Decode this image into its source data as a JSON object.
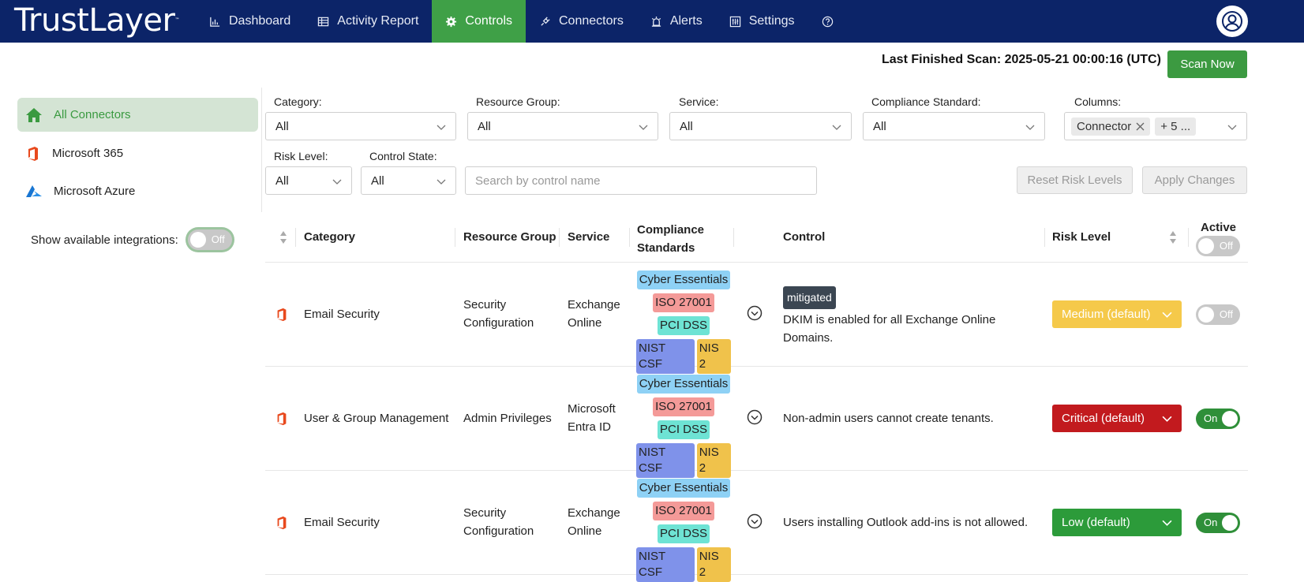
{
  "brand": "TrustLayer",
  "nav": [
    {
      "label": "Dashboard",
      "icon": "chart-icon"
    },
    {
      "label": "Activity Report",
      "icon": "table-icon"
    },
    {
      "label": "Controls",
      "icon": "gear-icon",
      "active": true
    },
    {
      "label": "Connectors",
      "icon": "plug-icon"
    },
    {
      "label": "Alerts",
      "icon": "alarm-icon"
    },
    {
      "label": "Settings",
      "icon": "sliders-icon"
    }
  ],
  "scan": {
    "label": "Last Finished Scan: 2025-05-21 00:00:16 (UTC)",
    "button": "Scan Now"
  },
  "sidebar": {
    "items": [
      {
        "label": "All Connectors",
        "icon": "home-icon"
      },
      {
        "label": "Microsoft 365",
        "icon": "office-icon"
      },
      {
        "label": "Microsoft Azure",
        "icon": "azure-icon"
      }
    ],
    "integrations_label": "Show available integrations:",
    "integrations_toggle": "Off"
  },
  "filters": {
    "category": {
      "label": "Category:",
      "value": "All"
    },
    "resource_group": {
      "label": "Resource Group:",
      "value": "All"
    },
    "service": {
      "label": "Service:",
      "value": "All"
    },
    "compliance": {
      "label": "Compliance Standard:",
      "value": "All"
    },
    "columns": {
      "label": "Columns:",
      "chip": "Connector",
      "more": "+ 5 ..."
    },
    "risk_level": {
      "label": "Risk Level:",
      "value": "All"
    },
    "control_state": {
      "label": "Control State:",
      "value": "All"
    },
    "search_placeholder": "Search by control name",
    "reset_button": "Reset Risk Levels",
    "apply_button": "Apply Changes"
  },
  "table": {
    "headers": {
      "category": "Category",
      "resource_group": "Resource Group",
      "service": "Service",
      "compliance_1": "Compliance",
      "compliance_2": "Standards",
      "control": "Control",
      "risk": "Risk Level",
      "active": "Active",
      "active_toggle": "Off"
    },
    "rows": [
      {
        "category": "Email Security",
        "resource_group_1": "Security",
        "resource_group_2": "Configuration",
        "service_1": "Exchange",
        "service_2": "Online",
        "tags": [
          "Cyber Essentials",
          "ISO 27001",
          "PCI DSS",
          "NIST CSF",
          "NIS 2"
        ],
        "badge": "mitigated",
        "control_1": "DKIM is enabled for all Exchange Online",
        "control_2": "Domains.",
        "risk": "Medium (default)",
        "active": "Off"
      },
      {
        "category": "User & Group Management",
        "resource_group_1": "Admin Privileges",
        "service_1": "Microsoft",
        "service_2": "Entra ID",
        "tags": [
          "Cyber Essentials",
          "ISO 27001",
          "PCI DSS",
          "NIST CSF",
          "NIS 2"
        ],
        "control_1": "Non-admin users cannot create tenants.",
        "risk": "Critical (default)",
        "active": "On"
      },
      {
        "category": "Email Security",
        "resource_group_1": "Security",
        "resource_group_2": "Configuration",
        "service_1": "Exchange",
        "service_2": "Online",
        "tags": [
          "Cyber Essentials",
          "ISO 27001",
          "PCI DSS",
          "NIST CSF",
          "NIS 2"
        ],
        "control_1": "Users installing Outlook add-ins is not allowed.",
        "risk": "Low (default)",
        "active": "On"
      }
    ]
  }
}
